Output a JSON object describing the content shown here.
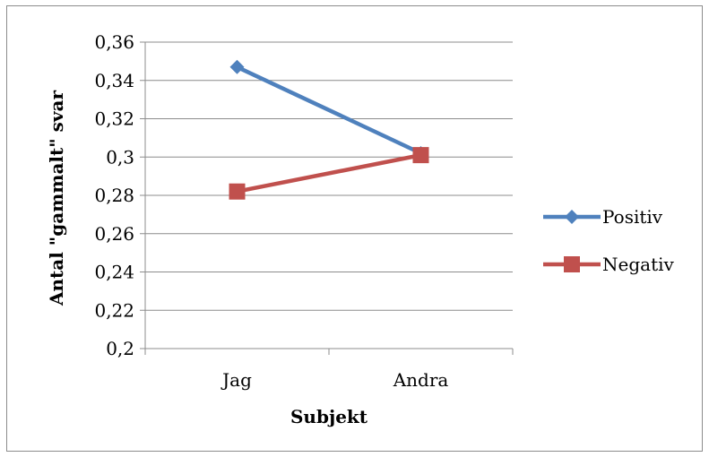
{
  "chart_data": {
    "type": "line",
    "categories": [
      "Jag",
      "Andra"
    ],
    "series": [
      {
        "name": "Positiv",
        "values": [
          0.347,
          0.302
        ],
        "color": "#4f81bd",
        "marker": "diamond"
      },
      {
        "name": "Negativ",
        "values": [
          0.282,
          0.301
        ],
        "color": "#c0504d",
        "marker": "square"
      }
    ],
    "xlabel": "Subjekt",
    "ylabel": "Antal \"gammalt\" svar",
    "ylim": [
      0.2,
      0.36
    ],
    "yticks": [
      "0,2",
      "0,22",
      "0,24",
      "0,26",
      "0,28",
      "0,3",
      "0,32",
      "0,34",
      "0,36"
    ],
    "grid": true,
    "legend_position": "right"
  }
}
